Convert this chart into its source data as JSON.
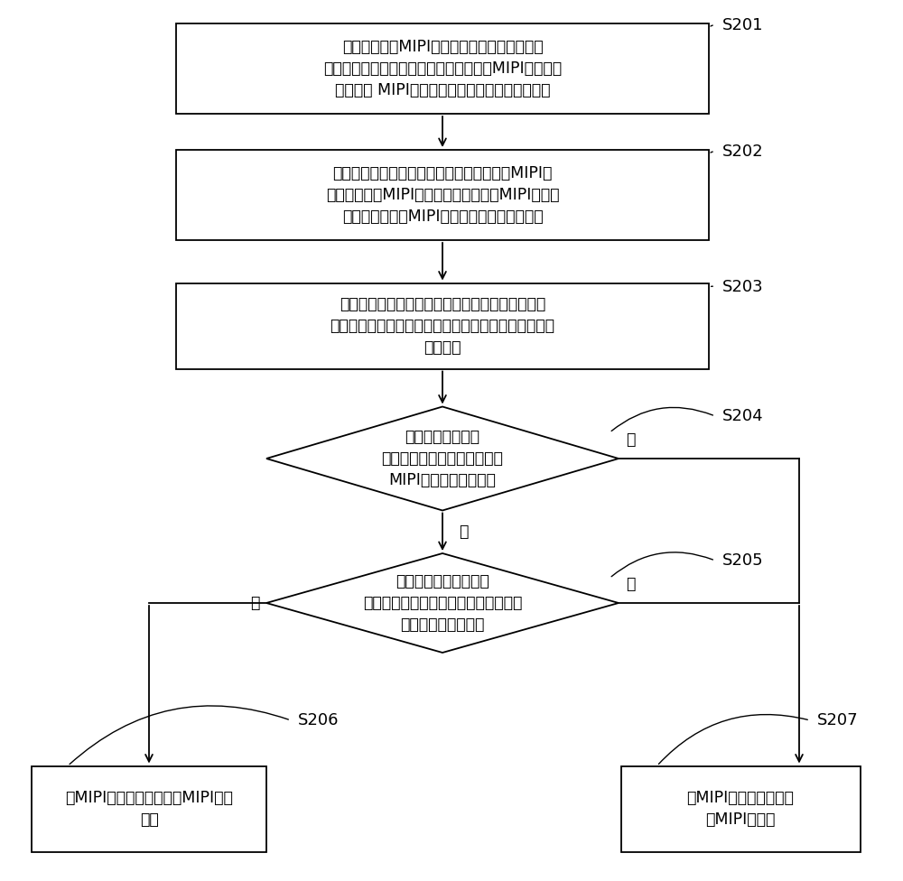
{
  "bg_color": "#ffffff",
  "box_color": "#ffffff",
  "box_edge_color": "#000000",
  "text_color": "#000000",
  "font_size": 12.5,
  "small_font_size": 12,
  "S201_text": "建立关于终端MIPI干扰情况的干扰信道信息记\n录表，其中所述干扰信道信息记录表包括MIPI主频率、\n以及所述 MIPI频率对应的干扰信道、及干扰程度",
  "S202_text": "根据所述干扰信道信息记录表，设置与所述MIPI主\n频率相对应的MIPI备用频率，其中所述MIPI备用频\n率的信道与所述MIPI主频率的干扰信道不重叠",
  "S203_text": "在预设时间间隔内，通过多次采样获取终端通信时\n的射频信息，以确定所述射频信息中当前信道信号强度\n的最小值",
  "S204_text": "判断所述当前信道\n是否为干扰信道信息记录表中\nMIPI主频率的干扰信道",
  "S205_text": "判断当前信道信号强度\n的最小值与所述干扰信道对的干扰程度\n的差值是否小于阈值",
  "S206_text": "将MIPI的工作频率调整为MIPI备用\n频率",
  "S207_text": "将MIPI的工作频率调整\n为MIPI主频率",
  "yes_text": "是",
  "no_text": "否",
  "S201_label": "S201",
  "S202_label": "S202",
  "S203_label": "S203",
  "S204_label": "S204",
  "S205_label": "S205",
  "S206_label": "S206",
  "S207_label": "S207"
}
